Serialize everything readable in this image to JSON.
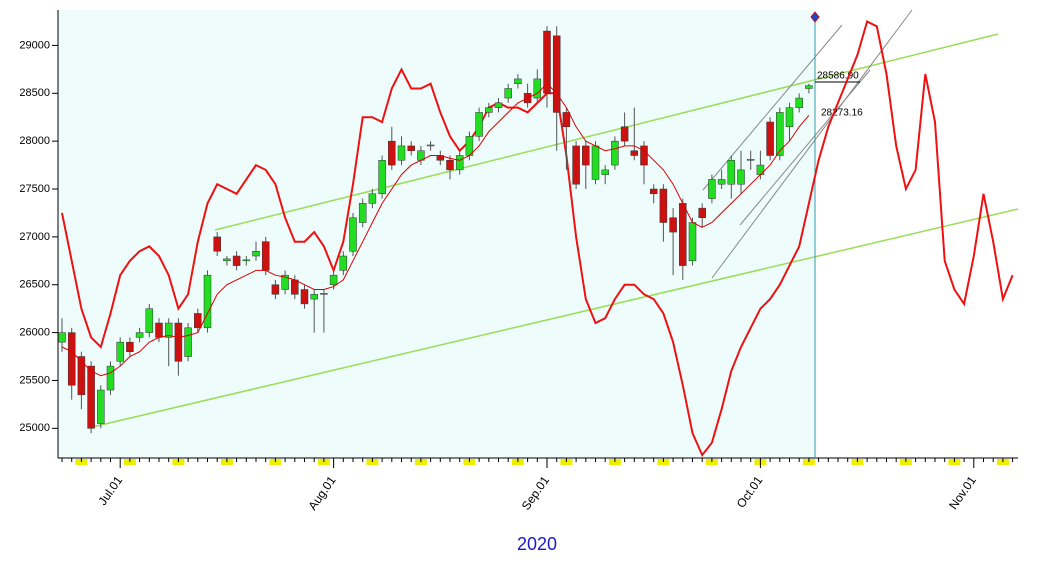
{
  "chart_data": {
    "type": "candlestick",
    "x_label": "2020",
    "annotations": [
      "28586.90",
      "28273.16"
    ],
    "ylim": [
      24690,
      29370
    ],
    "yticks": [
      25000,
      25500,
      26000,
      26500,
      27000,
      27500,
      28000,
      28500,
      29000
    ],
    "categories": [
      null,
      null,
      null,
      null,
      null,
      null,
      "Jul.01",
      null,
      null,
      null,
      null,
      null,
      null,
      null,
      null,
      null,
      null,
      null,
      null,
      null,
      null,
      null,
      null,
      null,
      null,
      null,
      null,
      null,
      "Aug.01",
      null,
      null,
      null,
      null,
      null,
      null,
      null,
      null,
      null,
      null,
      null,
      null,
      null,
      null,
      null,
      null,
      null,
      null,
      null,
      null,
      null,
      "Sep.01",
      null,
      null,
      null,
      null,
      null,
      null,
      null,
      null,
      null,
      null,
      null,
      null,
      null,
      null,
      null,
      null,
      null,
      null,
      null,
      null,
      null,
      "Oct.01",
      null,
      null,
      null,
      null,
      null,
      null,
      null,
      null,
      null,
      null,
      null,
      null,
      null,
      null,
      null,
      null,
      null,
      null,
      null,
      null,
      null,
      "Nov.01",
      null,
      null,
      null,
      null
    ],
    "up_color": "#22dd22",
    "down_color": "#cc1111",
    "open": [
      25900,
      26000,
      25750,
      25650,
      25050,
      25400,
      25700,
      25900,
      25950,
      26000,
      26100,
      25950,
      26100,
      25750,
      26200,
      26050,
      27000,
      26750,
      26800,
      26750,
      26800,
      26950,
      26500,
      26450,
      26550,
      26450,
      26350,
      26400,
      26500,
      26650,
      26850,
      27150,
      27350,
      27450,
      28000,
      27800,
      27950,
      27800,
      27950,
      27850,
      27800,
      27700,
      27850,
      28050,
      28300,
      28350,
      28450,
      28600,
      28500,
      28450,
      29150,
      29100,
      28300,
      27950,
      27950,
      27600,
      27650,
      27750,
      28150,
      27900,
      27950,
      27500,
      27500,
      27200,
      27350,
      26750,
      27300,
      27400,
      27550,
      27550,
      27550,
      27800,
      27650,
      28200,
      27850,
      28150,
      28350,
      28550,
      null,
      null,
      null,
      null,
      null,
      null,
      null,
      null,
      null,
      null,
      null,
      null,
      null,
      null,
      null,
      null,
      null,
      null,
      null,
      null,
      null
    ],
    "high": [
      26150,
      26050,
      25800,
      25700,
      25450,
      25700,
      25950,
      25950,
      26050,
      26300,
      26150,
      26150,
      26150,
      26100,
      26250,
      26650,
      27050,
      26800,
      26850,
      26800,
      26950,
      27000,
      26550,
      26650,
      26600,
      26500,
      26450,
      26450,
      26650,
      26850,
      27250,
      27400,
      27500,
      27850,
      28150,
      28050,
      28000,
      27950,
      28000,
      27900,
      27850,
      27900,
      28100,
      28350,
      28400,
      28450,
      28600,
      28700,
      28600,
      28750,
      29200,
      29200,
      28350,
      28000,
      28000,
      28000,
      27750,
      28050,
      28300,
      28350,
      28000,
      27550,
      27550,
      27300,
      27400,
      27200,
      27350,
      27650,
      27700,
      27850,
      27900,
      27900,
      27900,
      28250,
      28350,
      28400,
      28500,
      28600,
      null,
      null,
      null,
      null,
      null,
      null,
      null,
      null,
      null,
      null,
      null,
      null,
      null,
      null,
      null,
      null,
      null,
      null,
      null,
      null,
      null
    ],
    "low": [
      25800,
      25300,
      25200,
      24950,
      25000,
      25350,
      25650,
      25750,
      25900,
      25950,
      25900,
      25650,
      25550,
      25700,
      26000,
      26000,
      26800,
      26700,
      26650,
      26700,
      26750,
      26600,
      26350,
      26400,
      26350,
      26250,
      26000,
      26000,
      26450,
      26600,
      26800,
      27100,
      27300,
      27400,
      27700,
      27750,
      27850,
      27750,
      27900,
      27750,
      27600,
      27650,
      27800,
      28000,
      28250,
      28300,
      28400,
      28550,
      28350,
      28400,
      28350,
      27900,
      27700,
      27500,
      27500,
      27550,
      27550,
      27700,
      27950,
      27800,
      27550,
      27350,
      26950,
      26600,
      26550,
      26700,
      27100,
      27350,
      27500,
      27400,
      27450,
      27700,
      27600,
      27800,
      27800,
      28000,
      28300,
      28500,
      null,
      null,
      null,
      null,
      null,
      null,
      null,
      null,
      null,
      null,
      null,
      null,
      null,
      null,
      null,
      null,
      null,
      null,
      null,
      null,
      null
    ],
    "close": [
      26000,
      25450,
      25350,
      25000,
      25400,
      25650,
      25900,
      25800,
      26000,
      26250,
      25950,
      26100,
      25700,
      26050,
      26050,
      26600,
      26850,
      26770,
      26700,
      26760,
      26850,
      26650,
      26400,
      26600,
      26400,
      26300,
      26400,
      26410,
      26600,
      26800,
      27200,
      27350,
      27450,
      27800,
      27750,
      27950,
      27900,
      27900,
      27960,
      27800,
      27700,
      27850,
      28050,
      28300,
      28350,
      28400,
      28550,
      28650,
      28400,
      28650,
      28500,
      28300,
      28150,
      27550,
      27750,
      27950,
      27700,
      28000,
      28000,
      27850,
      27750,
      27450,
      27150,
      27050,
      26700,
      27150,
      27200,
      27600,
      27600,
      27800,
      27700,
      27810,
      27750,
      27850,
      28300,
      28350,
      28450,
      28580,
      null,
      null,
      null,
      null,
      null,
      null,
      null,
      null,
      null,
      null,
      null,
      null,
      null,
      null,
      null,
      null,
      null,
      null,
      null,
      null,
      null
    ],
    "moving_average": {
      "color": "#dd0000",
      "values": [
        25850,
        25800,
        25700,
        25600,
        25550,
        25580,
        25650,
        25750,
        25800,
        25900,
        25950,
        25970,
        25950,
        25970,
        26000,
        26200,
        26400,
        26500,
        26550,
        26600,
        26650,
        26650,
        26600,
        26580,
        26550,
        26500,
        26450,
        26450,
        26480,
        26550,
        26750,
        26950,
        27150,
        27350,
        27500,
        27650,
        27750,
        27800,
        27850,
        27850,
        27820,
        27800,
        27850,
        27950,
        28100,
        28200,
        28300,
        28400,
        28450,
        28500,
        28600,
        28500,
        28350,
        28150,
        28000,
        27950,
        27900,
        27920,
        27950,
        27950,
        27900,
        27800,
        27700,
        27550,
        27350,
        27150,
        27100,
        27150,
        27250,
        27350,
        27450,
        27550,
        27650,
        27750,
        27900,
        28000,
        28150,
        28270,
        null,
        null,
        null,
        null,
        null,
        null,
        null,
        null,
        null,
        null,
        null,
        null,
        null,
        null,
        null,
        null,
        null,
        null,
        null,
        null,
        null
      ]
    },
    "oscillator": {
      "color": "#ee1111",
      "values": [
        27250,
        26750,
        26250,
        25950,
        25850,
        26200,
        26600,
        26750,
        26850,
        26900,
        26800,
        26600,
        26250,
        26400,
        26950,
        27350,
        27550,
        27500,
        27450,
        27600,
        27750,
        27700,
        27550,
        27200,
        26950,
        26950,
        27050,
        26900,
        26650,
        26950,
        27550,
        28250,
        28250,
        28200,
        28550,
        28750,
        28550,
        28550,
        28600,
        28300,
        28050,
        27900,
        28000,
        28150,
        28350,
        28400,
        28350,
        28350,
        28300,
        28400,
        28500,
        28500,
        27850,
        27000,
        26350,
        26100,
        26150,
        26350,
        26500,
        26500,
        26400,
        26350,
        26200,
        25900,
        25450,
        24950,
        24720,
        24850,
        25200,
        25600,
        25850,
        26050,
        26250,
        26350,
        26500,
        26700,
        26900,
        27350,
        27800,
        28150,
        28400,
        28650,
        28900,
        29250,
        29200,
        28700,
        27950,
        27500,
        27700,
        28700,
        28200,
        26750,
        26450,
        26300,
        26800,
        27450,
        26950,
        26350,
        26600
      ]
    }
  }
}
